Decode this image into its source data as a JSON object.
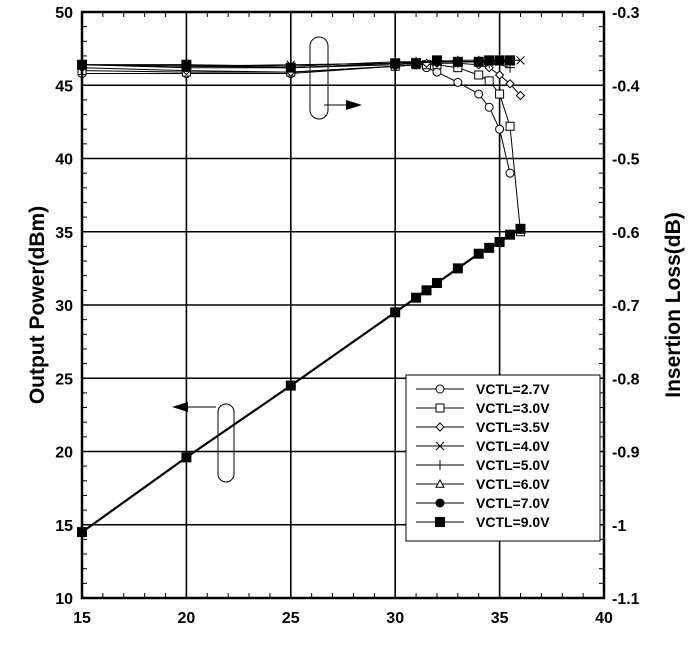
{
  "chart_data": {
    "type": "line",
    "title": "",
    "xlabel": "",
    "ylabel_left": "Output Power(dBm)",
    "ylabel_right": "Insertion Loss(dB)",
    "x_range": [
      15,
      40
    ],
    "y_left_range": [
      10,
      50
    ],
    "y_right_range": [
      -1.1,
      -0.3
    ],
    "x_ticks": [
      "15",
      "20",
      "25",
      "30",
      "35",
      "40"
    ],
    "y_left_ticks": [
      "10",
      "15",
      "20",
      "25",
      "30",
      "35",
      "40",
      "45",
      "50"
    ],
    "y_right_ticks": [
      "-1.1",
      "-1",
      "-0.9",
      "-0.8",
      "-0.7",
      "-0.6",
      "-0.5",
      "-0.4",
      "-0.3"
    ],
    "grid": true,
    "legend_position": "bottom-right",
    "output_power_series": {
      "axis": "left",
      "x": [
        15,
        20,
        25,
        30,
        31,
        31.5,
        32,
        33,
        34,
        34.5,
        35,
        35.5,
        36
      ],
      "y": [
        14.5,
        19.6,
        24.5,
        29.5,
        30.5,
        31.0,
        31.5,
        32.5,
        33.5,
        33.9,
        34.3,
        34.8,
        35.2
      ],
      "marker": "square-filled"
    },
    "insertion_loss_series": [
      {
        "name": "VCTL=2.7V",
        "marker": "circle-open",
        "x": [
          15,
          20,
          25,
          30,
          31,
          31.5,
          32,
          33,
          34,
          34.5,
          35,
          35.5
        ],
        "y": [
          -0.384,
          -0.384,
          -0.384,
          -0.374,
          -0.372,
          -0.376,
          -0.382,
          -0.396,
          -0.412,
          -0.43,
          -0.46,
          -0.52
        ]
      },
      {
        "name": "VCTL=3.0V",
        "marker": "square-open",
        "x": [
          15,
          20,
          25,
          30,
          31,
          31.5,
          32,
          33,
          34,
          34.5,
          35,
          35.5,
          36
        ],
        "y": [
          -0.38,
          -0.382,
          -0.382,
          -0.374,
          -0.372,
          -0.372,
          -0.372,
          -0.376,
          -0.386,
          -0.394,
          -0.412,
          -0.456,
          -0.6
        ]
      },
      {
        "name": "VCTL=3.5V",
        "marker": "diamond-open",
        "x": [
          15,
          20,
          25,
          30,
          31,
          31.5,
          32,
          33,
          34,
          34.5,
          35,
          35.5,
          36
        ],
        "y": [
          -0.376,
          -0.38,
          -0.382,
          -0.374,
          -0.372,
          -0.37,
          -0.37,
          -0.37,
          -0.372,
          -0.376,
          -0.386,
          -0.398,
          -0.414
        ]
      },
      {
        "name": "VCTL=4.0V",
        "marker": "x",
        "x": [
          15,
          20,
          25,
          30,
          31,
          32,
          33,
          34,
          34.5,
          35,
          35.5,
          36
        ],
        "y": [
          -0.372,
          -0.374,
          -0.372,
          -0.37,
          -0.368,
          -0.368,
          -0.368,
          -0.368,
          -0.368,
          -0.368,
          -0.366,
          -0.366
        ]
      },
      {
        "name": "VCTL=5.0V",
        "marker": "plus",
        "x": [
          15,
          20,
          25,
          30,
          31,
          32,
          33,
          34,
          34.5,
          35,
          35.5
        ],
        "y": [
          -0.372,
          -0.372,
          -0.374,
          -0.368,
          -0.368,
          -0.368,
          -0.368,
          -0.368,
          -0.37,
          -0.372,
          -0.376
        ]
      },
      {
        "name": "VCTL=6.0V",
        "marker": "triangle-open",
        "x": [
          15,
          20,
          25,
          30,
          31,
          32,
          33,
          34,
          34.5,
          35,
          35.5
        ],
        "y": [
          -0.372,
          -0.374,
          -0.376,
          -0.37,
          -0.368,
          -0.368,
          -0.366,
          -0.366,
          -0.366,
          -0.368,
          -0.368
        ]
      },
      {
        "name": "VCTL=7.0V",
        "marker": "circle-filled",
        "x": [
          15,
          20,
          25,
          30,
          31,
          32,
          33,
          34,
          34.5,
          35,
          35.5
        ],
        "y": [
          -0.372,
          -0.376,
          -0.376,
          -0.372,
          -0.37,
          -0.368,
          -0.368,
          -0.368,
          -0.366,
          -0.366,
          -0.366
        ]
      },
      {
        "name": "VCTL=9.0V",
        "marker": "square-filled",
        "x": [
          15,
          20,
          25,
          30,
          31,
          32,
          33,
          34,
          34.5,
          35,
          35.5
        ],
        "y": [
          -0.372,
          -0.372,
          -0.376,
          -0.37,
          -0.37,
          -0.366,
          -0.368,
          -0.368,
          -0.366,
          -0.366,
          -0.366
        ]
      }
    ]
  }
}
